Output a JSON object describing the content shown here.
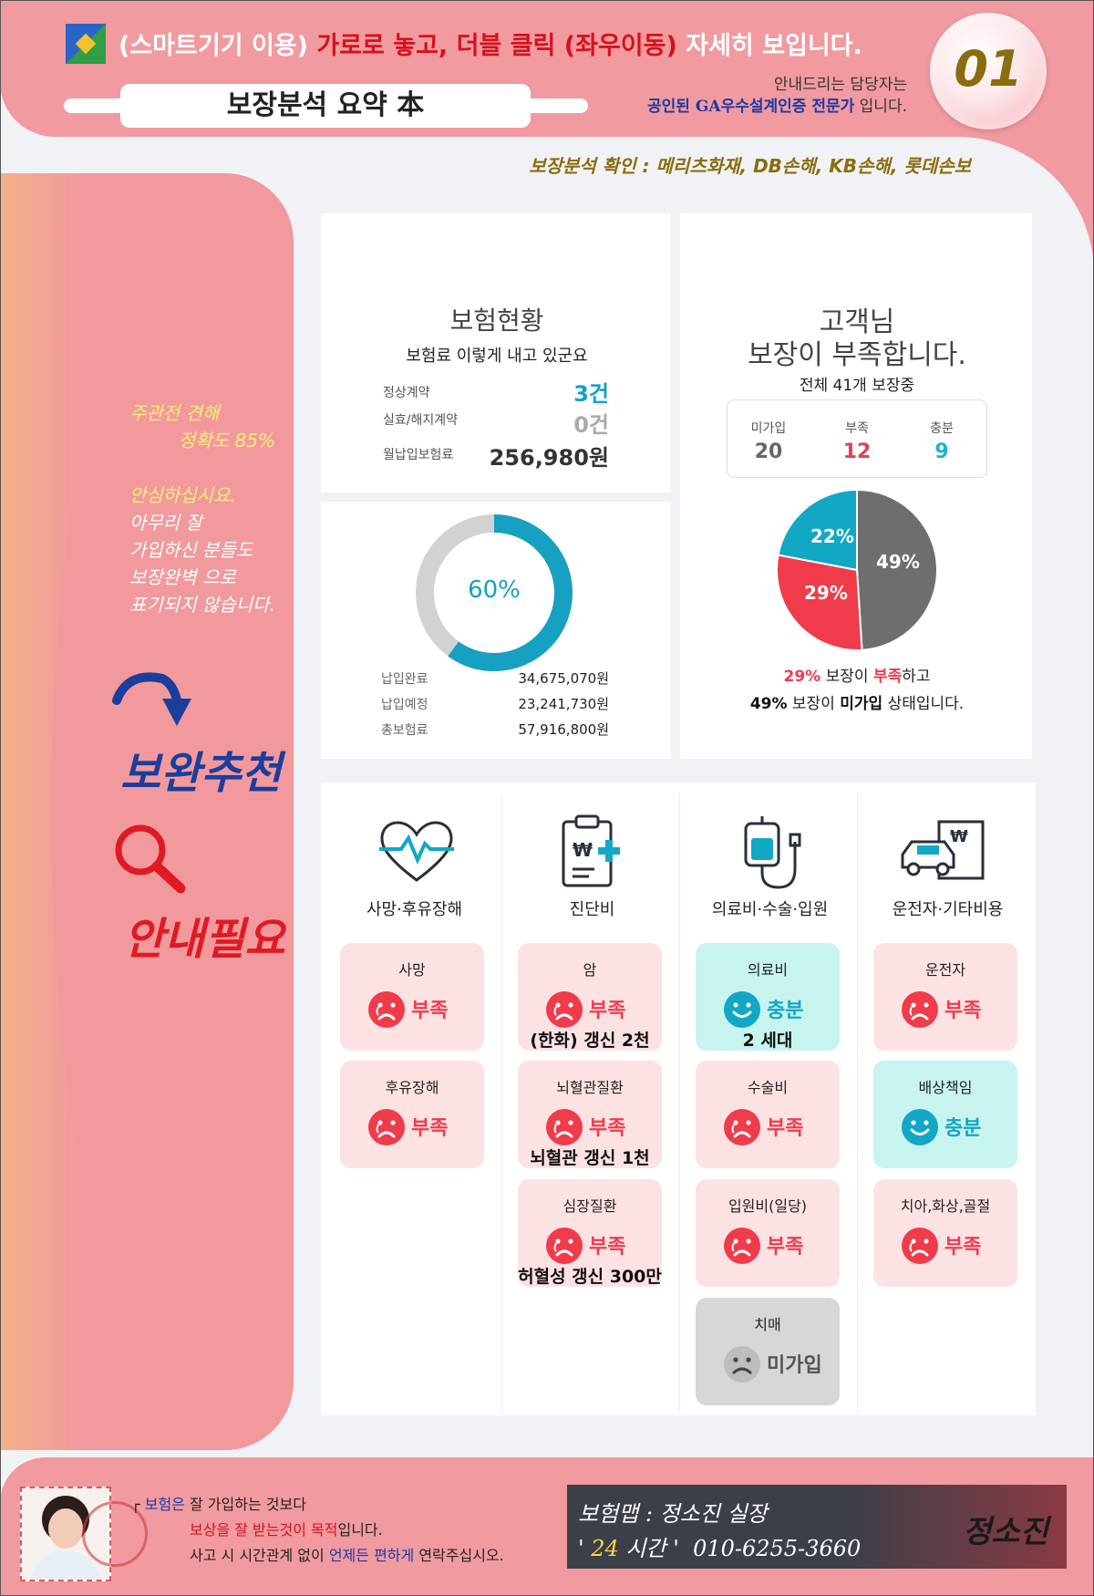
{
  "header": {
    "notice_prefix": "(스마트기기 이용)",
    "notice_highlight": "가로로 놓고, 더블 클릭 (좌우이동)",
    "notice_suffix": "자세히 보입니다.",
    "title": "보장분석 요약 本",
    "agent_line1": "안내드리는 담당자는",
    "agent_line2_bold": "공인된 GA우수설계인증 전문가",
    "agent_line2_rest": " 입니다.",
    "page_number": "01",
    "check_line": "보장분석 확인 : 메리츠화재, DB손해, KB손해, 롯데손보"
  },
  "sidebar": {
    "line1": "주관전 견해",
    "line2": "정확도 85%",
    "line3": "안심하십시요.",
    "line4": "아무리 잘",
    "line5": "가입하신 분들도",
    "line6": "보장완벽 으로",
    "line7": "표기되지 않습니다.",
    "recommend": "보완추천",
    "need_guide": "안내필요"
  },
  "insurance_status": {
    "title": "보험현황",
    "subtitle": "보험료 이렇게 내고 있군요",
    "rows": [
      {
        "label": "정상계약",
        "value": "3건",
        "color": "#16a0c2"
      },
      {
        "label": "실효/해지계약",
        "value": "0건",
        "color": "#aaaaaa"
      },
      {
        "label": "월납입보험료",
        "value": "256,980원",
        "color": "#333333"
      }
    ],
    "donut_percent": 60,
    "donut_label": "60%",
    "payments": [
      {
        "label": "납입완료",
        "value": "34,675,070원"
      },
      {
        "label": "납입예정",
        "value": "23,241,730원"
      },
      {
        "label": "총보험료",
        "value": "57,916,800원"
      }
    ]
  },
  "customer": {
    "title1": "고객님",
    "title2": "보장이 부족합니다.",
    "subtitle": "전체 41개 보장중",
    "stats": [
      {
        "label": "미가입",
        "value": "20",
        "color": "#666666"
      },
      {
        "label": "부족",
        "value": "12",
        "color": "#f03b4b"
      },
      {
        "label": "충분",
        "value": "9",
        "color": "#1ab3cf"
      }
    ],
    "pie": [
      {
        "label": "49%",
        "value": 49,
        "color": "#6e6e6e"
      },
      {
        "label": "29%",
        "value": 29,
        "color": "#f03b4b"
      },
      {
        "label": "22%",
        "value": 22,
        "color": "#12a7c4"
      }
    ],
    "summary1_pct": "29%",
    "summary1_mid": " 보장이 ",
    "summary1_word": "부족",
    "summary1_end": "하고",
    "summary2_pct": "49%",
    "summary2_mid": " 보장이 ",
    "summary2_word": "미가입",
    "summary2_end": " 상태입니다."
  },
  "categories": [
    {
      "label": "사망·후유장해",
      "icon": "heart-pulse-icon"
    },
    {
      "label": "진단비",
      "icon": "clipboard-medical-icon"
    },
    {
      "label": "의료비·수술·입원",
      "icon": "iv-bag-icon"
    },
    {
      "label": "운전자·기타비용",
      "icon": "car-document-icon"
    }
  ],
  "coverage": [
    {
      "title": "사망",
      "status": "부족",
      "note": ""
    },
    {
      "title": "후유장해",
      "status": "부족",
      "note": ""
    },
    {
      "title": "암",
      "status": "부족",
      "note": "(한화) 갱신 2천"
    },
    {
      "title": "뇌혈관질환",
      "status": "부족",
      "note": "뇌혈관 갱신 1천"
    },
    {
      "title": "심장질환",
      "status": "부족",
      "note": "허혈성 갱신 300만"
    },
    {
      "title": "의료비",
      "status": "충분",
      "note": "2 세대"
    },
    {
      "title": "수술비",
      "status": "부족",
      "note": ""
    },
    {
      "title": "입원비(일당)",
      "status": "부족",
      "note": ""
    },
    {
      "title": "치매",
      "status": "미가입",
      "note": ""
    },
    {
      "title": "운전자",
      "status": "부족",
      "note": ""
    },
    {
      "title": "배상책임",
      "status": "충분",
      "note": ""
    },
    {
      "title": "치아,화상,골절",
      "status": "부족",
      "note": ""
    }
  ],
  "footer": {
    "line1_blue": "보험은",
    "line1_rest": " 잘 가입하는 것보다",
    "line2_red": "보상을 잘 받는것이 목적",
    "line2_rest": "입니다.",
    "line3_a": "사고 시 시간관계 없이 ",
    "line3_blue": "언제든 편하게",
    "line3_c": " 연락주십시오.",
    "contact_name": "보험맵 : 정소진 실장",
    "contact_24": "24",
    "contact_time": " 시간 '",
    "contact_phone": "010-6255-3660",
    "signature": "정소진"
  }
}
